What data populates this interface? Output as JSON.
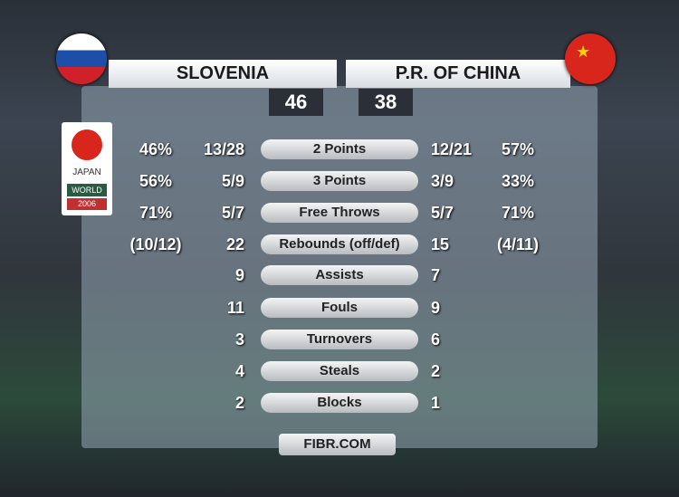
{
  "header": {
    "team1": "SLOVENIA",
    "team2": "P.R. OF CHINA",
    "score1": "46",
    "score2": "38"
  },
  "logo": {
    "country": "JAPAN",
    "event": "WORLD",
    "year": "2006"
  },
  "rows": [
    {
      "label": "2 Points",
      "left_pct": "46%",
      "left": "13/28",
      "right": "12/21",
      "right_pct": "57%"
    },
    {
      "label": "3 Points",
      "left_pct": "56%",
      "left": "5/9",
      "right": "3/9",
      "right_pct": "33%"
    },
    {
      "label": "Free Throws",
      "left_pct": "71%",
      "left": "5/7",
      "right": "5/7",
      "right_pct": "71%"
    },
    {
      "label": "Rebounds (off/def)",
      "left_pct": "(10/12)",
      "left": "22",
      "right": "15",
      "right_pct": "(4/11)"
    },
    {
      "label": "Assists",
      "left": "9",
      "right": "7"
    },
    {
      "label": "Fouls",
      "left": "11",
      "right": "9"
    },
    {
      "label": "Turnovers",
      "left": "3",
      "right": "6"
    },
    {
      "label": "Steals",
      "left": "4",
      "right": "2"
    },
    {
      "label": "Blocks",
      "left": "2",
      "right": "1"
    }
  ],
  "footer": "FIBR.COM"
}
